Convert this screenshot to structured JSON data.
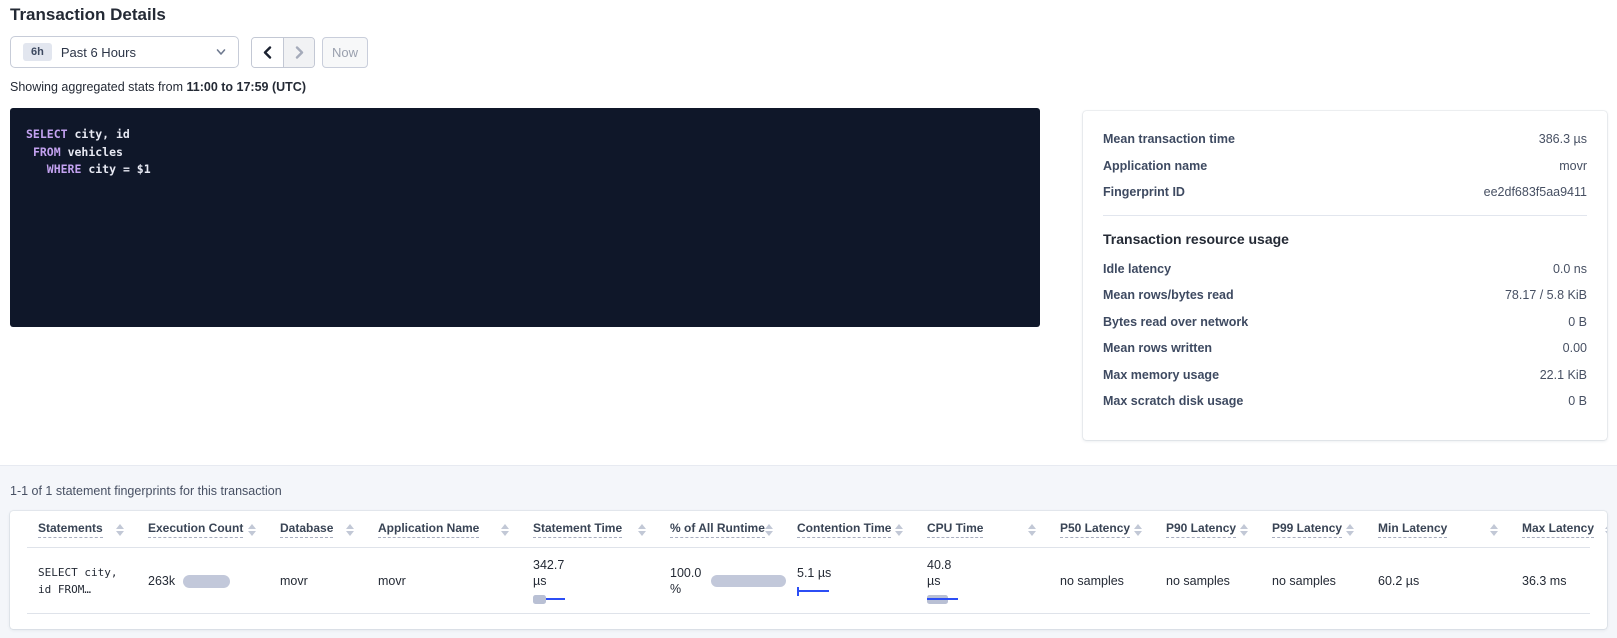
{
  "page": {
    "title": "Transaction Details"
  },
  "toolbar": {
    "time_badge": "6h",
    "time_label": "Past 6 Hours",
    "prev_icon": "chevron-left",
    "next_icon": "chevron-right",
    "now_label": "Now"
  },
  "stats_line": {
    "prefix": "Showing aggregated stats from ",
    "range": "11:00 to 17:59 (UTC)"
  },
  "sql": {
    "lines": [
      {
        "pre": "",
        "keyword": "SELECT",
        "rest": " city, id"
      },
      {
        "pre": " ",
        "keyword": "FROM",
        "rest": " vehicles"
      },
      {
        "pre": "   ",
        "keyword": "WHERE",
        "rest": " city = $1"
      }
    ]
  },
  "details_card": {
    "summary": [
      {
        "label": "Mean transaction time",
        "value": "386.3 µs"
      },
      {
        "label": "Application name",
        "value": "movr"
      },
      {
        "label": "Fingerprint ID",
        "value": "ee2df683f5aa9411"
      }
    ],
    "resource_heading": "Transaction resource usage",
    "resource": [
      {
        "label": "Idle latency",
        "value": "0.0 ns"
      },
      {
        "label": "Mean rows/bytes read",
        "value": "78.17 / 5.8 KiB"
      },
      {
        "label": "Bytes read over network",
        "value": "0 B"
      },
      {
        "label": "Mean rows written",
        "value": "0.00"
      },
      {
        "label": "Max memory usage",
        "value": "22.1 KiB"
      },
      {
        "label": "Max scratch disk usage",
        "value": "0 B"
      }
    ]
  },
  "fingerprints_line": "1-1 of 1 statement fingerprints for this transaction",
  "table": {
    "columns": [
      "Statements",
      "Execution Count",
      "Database",
      "Application Name",
      "Statement Time",
      "% of All Runtime",
      "Contention Time",
      "CPU Time",
      "P50 Latency",
      "P90 Latency",
      "P99 Latency",
      "Min Latency",
      "Max Latency"
    ],
    "row": {
      "statement_line1": "SELECT city,",
      "statement_line2": "id FROM…",
      "execution_count": "263k",
      "database": "movr",
      "application_name": "movr",
      "statement_time_value": "342.7",
      "statement_time_unit": "µs",
      "runtime_value": "100.0",
      "runtime_unit": "%",
      "contention_time": "5.1 µs",
      "cpu_time_value": "40.8",
      "cpu_time_unit": "µs",
      "p50_latency": "no samples",
      "p90_latency": "no samples",
      "p99_latency": "no samples",
      "min_latency": "60.2 µs",
      "max_latency": "36.3 ms"
    }
  },
  "colors": {
    "accent_blue": "#2c4ef5",
    "bar_gray": "#c2c8da",
    "sql_keyword": "#c3a2f0",
    "sql_background": "#0f1729",
    "section_background": "#f4f6fa"
  }
}
